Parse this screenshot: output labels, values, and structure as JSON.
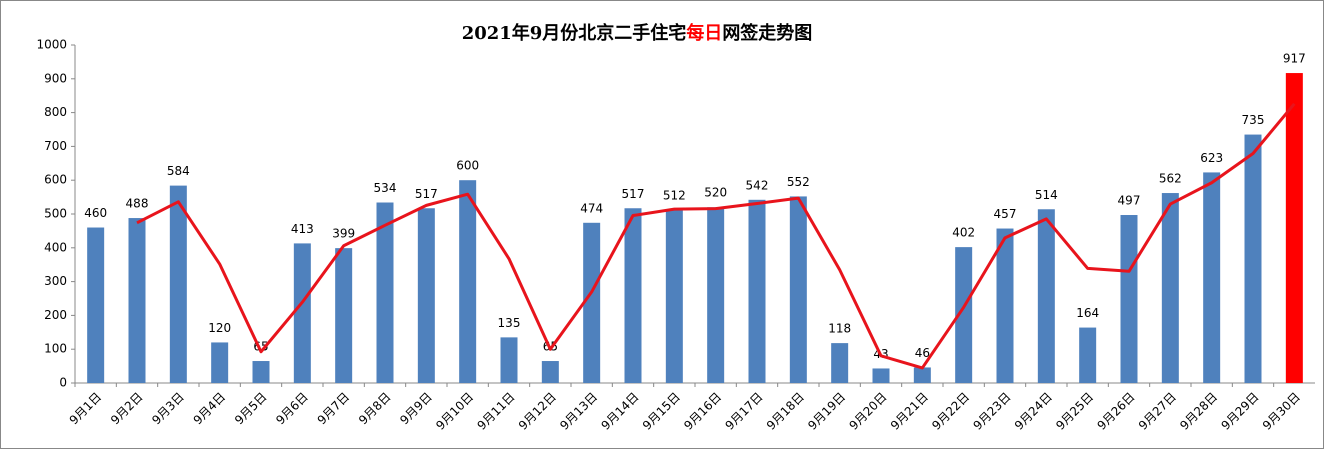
{
  "chart_data": {
    "type": "bar",
    "title": [
      "2021年9月份北京二手住宅",
      "每日",
      "网签走势图"
    ],
    "title_colors": [
      "#000000",
      "#ff0000",
      "#000000"
    ],
    "categories": [
      "9月1日",
      "9月2日",
      "9月3日",
      "9月4日",
      "9月5日",
      "9月6日",
      "9月7日",
      "9月8日",
      "9月9日",
      "9月10日",
      "9月11日",
      "9月12日",
      "9月13日",
      "9月14日",
      "9月15日",
      "9月16日",
      "9月17日",
      "9月18日",
      "9月19日",
      "9月20日",
      "9月21日",
      "9月22日",
      "9月23日",
      "9月24日",
      "9月25日",
      "9月26日",
      "9月27日",
      "9月28日",
      "9月29日",
      "9月30日"
    ],
    "series": [
      {
        "type": "bar",
        "values": [
          460,
          488,
          584,
          120,
          65,
          413,
          399,
          534,
          517,
          600,
          135,
          65,
          474,
          517,
          512,
          520,
          542,
          552,
          118,
          43,
          46,
          402,
          457,
          514,
          164,
          497,
          562,
          623,
          735,
          917
        ],
        "colors": [
          "#4f81bd",
          "#4f81bd",
          "#4f81bd",
          "#4f81bd",
          "#4f81bd",
          "#4f81bd",
          "#4f81bd",
          "#4f81bd",
          "#4f81bd",
          "#4f81bd",
          "#4f81bd",
          "#4f81bd",
          "#4f81bd",
          "#4f81bd",
          "#4f81bd",
          "#4f81bd",
          "#4f81bd",
          "#4f81bd",
          "#4f81bd",
          "#4f81bd",
          "#4f81bd",
          "#4f81bd",
          "#4f81bd",
          "#4f81bd",
          "#4f81bd",
          "#4f81bd",
          "#4f81bd",
          "#4f81bd",
          "#4f81bd",
          "#ff0000"
        ]
      },
      {
        "type": "line",
        "color": "#e8141c",
        "values": [
          null,
          474,
          536,
          352,
          92.5,
          239,
          406,
          466.5,
          525.5,
          558.5,
          367.5,
          100,
          269.5,
          495.5,
          514.5,
          516,
          531,
          547,
          335,
          80.5,
          44.5,
          224,
          429.5,
          485.5,
          339,
          330.5,
          529.5,
          592.5,
          679,
          826
        ]
      }
    ],
    "ylim": [
      0,
      1000
    ],
    "yticks": [
      0,
      100,
      200,
      300,
      400,
      500,
      600,
      700,
      800,
      900,
      1000
    ],
    "grid": false
  }
}
